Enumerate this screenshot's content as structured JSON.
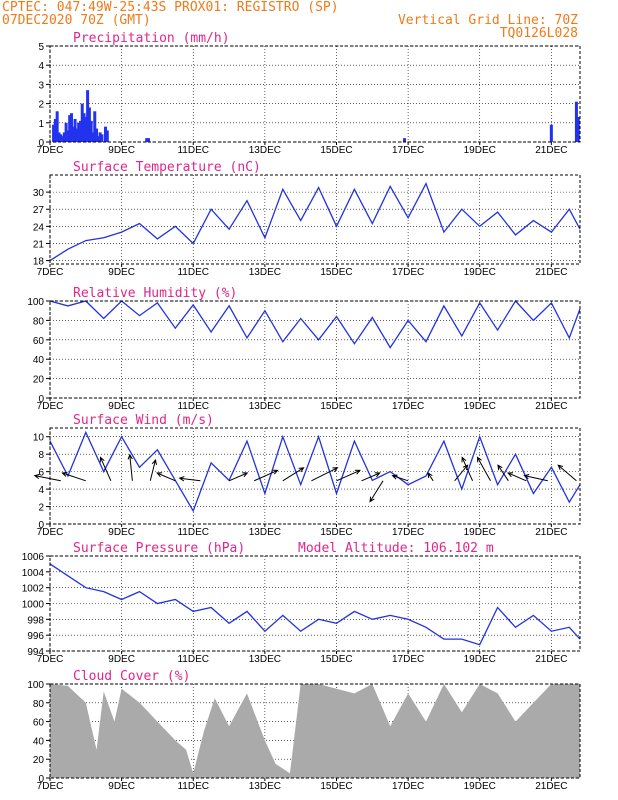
{
  "header": {
    "line1": "CPTEC:   047:49W-25:43S   PROX01: REGISTRO (SP)",
    "line2_left": "07DEC2020 70Z (GMT)",
    "line2_right": "Vertical Grid Line: 70Z",
    "line3_right": "TQ0126L028"
  },
  "colors": {
    "header": "#f07a1a",
    "title": "#e0268a",
    "series": "#2233dd",
    "cloud": "#aaaaaa"
  },
  "x_ticks": [
    "7DEC",
    "9DEC",
    "11DEC",
    "13DEC",
    "15DEC",
    "17DEC",
    "19DEC",
    "21DEC"
  ],
  "x_tick_days": [
    0,
    2,
    4,
    6,
    8,
    10,
    12,
    14
  ],
  "x_day_range": [
    0,
    14.8
  ],
  "chart_data": [
    {
      "id": "precip",
      "type": "bar",
      "title": "Precipitation (mm/h)",
      "ylim": [
        0,
        5
      ],
      "yticks": [
        0,
        1,
        2,
        3,
        4,
        5
      ],
      "x": [
        0.1,
        0.15,
        0.2,
        0.25,
        0.3,
        0.35,
        0.4,
        0.45,
        0.5,
        0.55,
        0.6,
        0.65,
        0.7,
        0.75,
        0.8,
        0.85,
        0.9,
        0.95,
        1.0,
        1.05,
        1.1,
        1.15,
        1.2,
        1.25,
        1.3,
        1.35,
        1.4,
        1.45,
        1.55,
        1.6,
        2.7,
        2.75,
        9.9,
        14.0,
        14.7,
        14.75
      ],
      "values": [
        0.9,
        1.2,
        1.6,
        0.5,
        0.4,
        0.3,
        0.5,
        1.0,
        0.6,
        1.4,
        1.5,
        0.8,
        1.2,
        0.7,
        1.0,
        1.1,
        2.0,
        1.5,
        1.3,
        2.7,
        1.8,
        1.1,
        0.5,
        1.6,
        0.7,
        0.3,
        0.5,
        0.4,
        0.8,
        0.6,
        0.2,
        0.2,
        0.2,
        0.9,
        2.1,
        1.3
      ]
    },
    {
      "id": "temp",
      "type": "line",
      "title": "Surface Temperature (nC)",
      "ylim": [
        17.4,
        33
      ],
      "yticks": [
        18,
        21,
        24,
        27,
        30
      ],
      "x": [
        0,
        0.5,
        1.0,
        1.5,
        2.0,
        2.5,
        3.0,
        3.5,
        4.0,
        4.5,
        5.0,
        5.5,
        6.0,
        6.5,
        7.0,
        7.5,
        8.0,
        8.5,
        9.0,
        9.5,
        10.0,
        10.5,
        11.0,
        11.5,
        12.0,
        12.5,
        13.0,
        13.5,
        14.0,
        14.5,
        14.8
      ],
      "values": [
        18.0,
        20.0,
        21.5,
        22.0,
        23.0,
        24.5,
        21.8,
        24.0,
        21.0,
        27.0,
        23.5,
        28.5,
        22.0,
        30.5,
        25.0,
        30.8,
        24.0,
        30.5,
        24.5,
        31.0,
        25.5,
        31.5,
        23.0,
        27.0,
        24.0,
        26.5,
        22.5,
        25.0,
        23.0,
        27.0,
        23.5
      ]
    },
    {
      "id": "rh",
      "type": "line",
      "title": "Relative Humidity (%)",
      "ylim": [
        0,
        100
      ],
      "yticks": [
        0,
        20,
        40,
        60,
        80,
        100
      ],
      "x": [
        0,
        0.5,
        1.0,
        1.5,
        2.0,
        2.5,
        3.0,
        3.5,
        4.0,
        4.5,
        5.0,
        5.5,
        6.0,
        6.5,
        7.0,
        7.5,
        8.0,
        8.5,
        9.0,
        9.5,
        10.0,
        10.5,
        11.0,
        11.5,
        12.0,
        12.5,
        13.0,
        13.5,
        14.0,
        14.5,
        14.8
      ],
      "values": [
        100,
        95,
        100,
        82,
        100,
        85,
        98,
        72,
        96,
        68,
        95,
        62,
        90,
        58,
        82,
        60,
        84,
        56,
        83,
        52,
        80,
        58,
        95,
        64,
        98,
        70,
        100,
        80,
        98,
        62,
        92
      ]
    },
    {
      "id": "wind",
      "type": "line",
      "title": "Surface Wind (m/s)",
      "ylim": [
        0,
        11
      ],
      "yticks": [
        0,
        2,
        4,
        6,
        8,
        10
      ],
      "x": [
        0,
        0.5,
        1.0,
        1.5,
        2.0,
        2.5,
        3.0,
        3.5,
        4.0,
        4.5,
        5.0,
        5.5,
        6.0,
        6.5,
        7.0,
        7.5,
        8.0,
        8.5,
        9.0,
        9.5,
        10.0,
        10.5,
        11.0,
        11.5,
        12.0,
        12.5,
        13.0,
        13.5,
        14.0,
        14.5,
        14.8
      ],
      "values": [
        9.5,
        5.5,
        10.5,
        6.0,
        10.0,
        6.5,
        8.5,
        5.0,
        1.5,
        7.0,
        5.0,
        9.5,
        3.5,
        10.0,
        4.5,
        10.0,
        3.5,
        9.5,
        5.0,
        6.0,
        4.5,
        5.5,
        9.5,
        4.0,
        10.0,
        4.5,
        8.0,
        3.5,
        6.5,
        2.5,
        4.5
      ],
      "arrow_days": [
        0.3,
        1.0,
        1.7,
        2.3,
        2.8,
        3.5,
        4.2,
        5.0,
        5.7,
        6.5,
        7.3,
        8.0,
        8.7,
        9.3,
        10.0,
        10.7,
        11.3,
        11.8,
        12.3,
        12.8,
        13.3,
        13.9,
        14.7
      ],
      "arrow_u": [
        -1.0,
        -0.9,
        -0.4,
        -0.1,
        0.2,
        -0.7,
        -0.8,
        0.7,
        0.9,
        0.8,
        1.0,
        0.9,
        0.7,
        -0.5,
        -0.6,
        -0.2,
        0.5,
        -0.4,
        -0.5,
        -0.4,
        -0.7,
        -0.9,
        -0.7
      ],
      "arrow_v": [
        0.2,
        0.3,
        0.9,
        1.0,
        0.8,
        0.3,
        0.1,
        0.3,
        0.4,
        0.5,
        0.5,
        0.4,
        0.3,
        -0.8,
        0.2,
        0.3,
        0.6,
        0.9,
        0.9,
        0.6,
        0.3,
        0.2,
        0.6
      ]
    },
    {
      "id": "pres",
      "type": "line",
      "title": "Surface Pressure (hPa)",
      "annotation": "Model Altitude: 106.102 m",
      "ylim": [
        994,
        1006
      ],
      "yticks": [
        994,
        996,
        998,
        1000,
        1002,
        1004,
        1006
      ],
      "x": [
        0,
        0.5,
        1.0,
        1.5,
        2.0,
        2.5,
        3.0,
        3.5,
        4.0,
        4.5,
        5.0,
        5.5,
        6.0,
        6.5,
        7.0,
        7.5,
        8.0,
        8.5,
        9.0,
        9.5,
        10.0,
        10.5,
        11.0,
        11.5,
        12.0,
        12.5,
        13.0,
        13.5,
        14.0,
        14.5,
        14.8
      ],
      "values": [
        1005.0,
        1003.5,
        1002.0,
        1001.5,
        1000.5,
        1001.5,
        1000.0,
        1000.5,
        999.0,
        999.5,
        997.5,
        999.0,
        996.5,
        998.5,
        996.5,
        998.0,
        997.5,
        999.0,
        998.0,
        998.5,
        998.0,
        997.0,
        995.5,
        995.5,
        994.8,
        999.5,
        997.0,
        998.5,
        996.5,
        997.0,
        995.5
      ]
    },
    {
      "id": "cloud",
      "type": "area",
      "title": "Cloud Cover (%)",
      "ylim": [
        0,
        100
      ],
      "yticks": [
        0,
        20,
        40,
        60,
        80,
        100
      ],
      "x": [
        0,
        0.5,
        1.0,
        1.3,
        1.5,
        1.8,
        2.0,
        2.5,
        3.0,
        3.5,
        3.8,
        4.0,
        4.3,
        4.6,
        5.0,
        5.5,
        6.0,
        6.3,
        6.7,
        7.0,
        7.5,
        8.0,
        8.5,
        9.0,
        9.5,
        10.0,
        10.5,
        11.0,
        11.5,
        12.0,
        12.5,
        13.0,
        13.5,
        14.0,
        14.5,
        14.8
      ],
      "values": [
        100,
        98,
        80,
        30,
        92,
        60,
        95,
        80,
        60,
        40,
        30,
        5,
        50,
        85,
        55,
        90,
        40,
        15,
        5,
        100,
        100,
        95,
        90,
        100,
        55,
        90,
        60,
        100,
        70,
        100,
        90,
        60,
        80,
        100,
        100,
        100
      ]
    }
  ]
}
